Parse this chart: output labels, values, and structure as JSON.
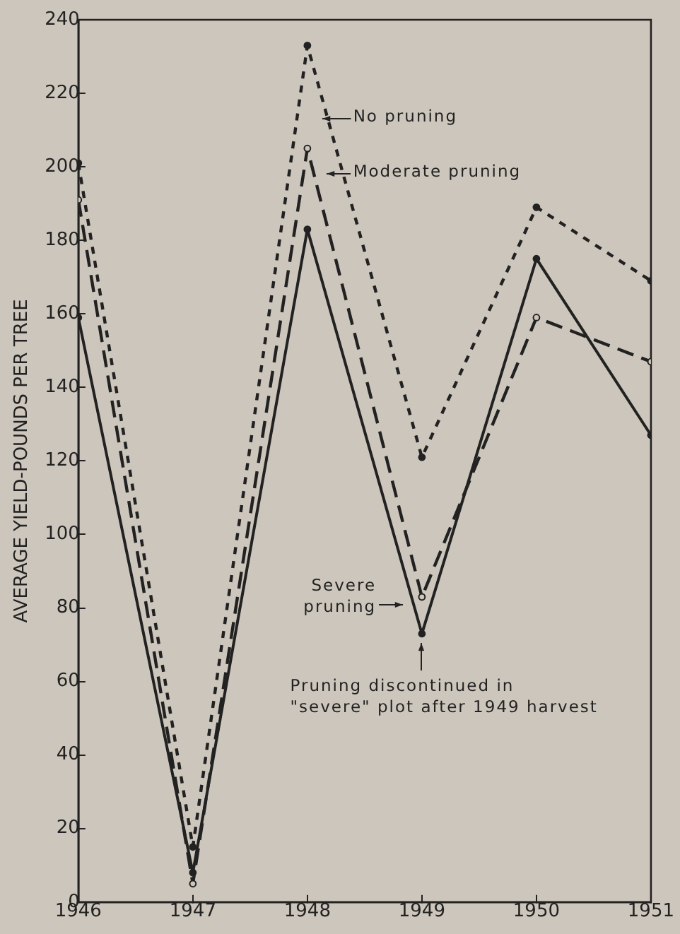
{
  "chart_data": {
    "type": "line",
    "ylabel": "AVERAGE YIELD-POUNDS PER TREE",
    "x": [
      1946,
      1947,
      1948,
      1949,
      1950,
      1951
    ],
    "xlim": [
      1946,
      1951
    ],
    "xticks": [
      1946,
      1947,
      1948,
      1949,
      1950,
      1951
    ],
    "ylim": [
      0,
      240
    ],
    "yticks": [
      0,
      20,
      40,
      60,
      80,
      100,
      120,
      140,
      160,
      180,
      200,
      220,
      240
    ],
    "grid": false,
    "legend": false,
    "marker": "circle",
    "series": [
      {
        "color": "#222222",
        "line_style": "dotted",
        "values": [
          201,
          15,
          233,
          121,
          189,
          169
        ]
      },
      {
        "color": "#222222",
        "line_style": "dashed",
        "values": [
          191,
          5,
          205,
          83,
          159,
          147
        ]
      },
      {
        "color": "#222222",
        "line_style": "solid",
        "values": [
          159,
          8,
          183,
          73,
          175,
          127
        ]
      }
    ],
    "annotations": [
      "No pruning",
      "Moderate pruning",
      "Severe pruning",
      "Pruning discontinued in \"severe\" plot after 1949 harvest"
    ]
  }
}
